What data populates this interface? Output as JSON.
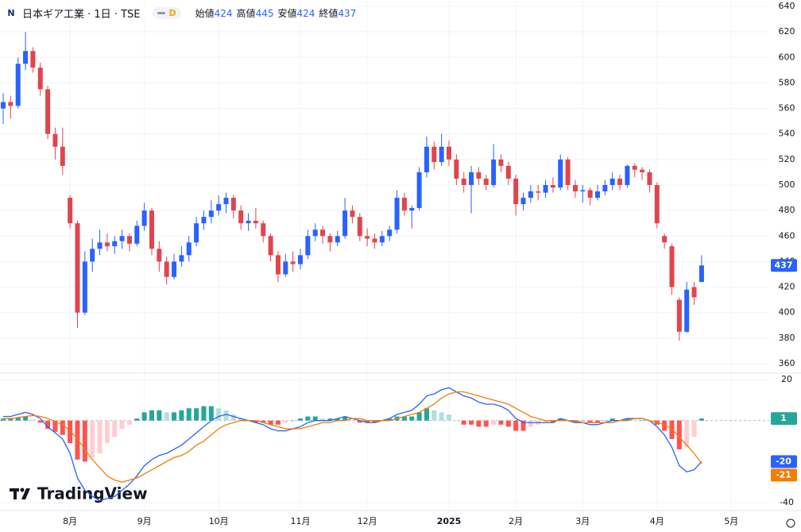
{
  "header": {
    "logo": "N",
    "symbol": "日本ギア工業 · 1日 · TSE",
    "badge": "D"
  },
  "watermark": "TradingView",
  "chart_data": {
    "type": "candlestick",
    "ohlc_labels": [
      "始値",
      "高値",
      "安値",
      "終値"
    ],
    "up_color": "#2962ff",
    "down_color": "#e0454e",
    "categories": [
      null,
      null,
      null,
      null,
      null,
      null,
      null,
      null,
      null,
      "8月",
      null,
      null,
      null,
      null,
      null,
      null,
      null,
      null,
      null,
      "9月",
      null,
      null,
      null,
      null,
      null,
      null,
      null,
      null,
      null,
      "10月",
      null,
      null,
      null,
      null,
      null,
      null,
      null,
      null,
      null,
      null,
      "11月",
      null,
      null,
      null,
      null,
      null,
      null,
      null,
      null,
      "12月",
      null,
      null,
      null,
      null,
      null,
      null,
      null,
      null,
      null,
      null,
      "2025",
      null,
      null,
      null,
      null,
      null,
      null,
      null,
      null,
      "2月",
      null,
      null,
      null,
      null,
      null,
      null,
      null,
      null,
      "3月",
      null,
      null,
      null,
      null,
      null,
      null,
      null,
      null,
      null,
      "4月",
      null,
      null,
      null,
      null,
      null,
      null,
      null,
      null,
      null,
      "5月",
      null
    ],
    "candles": [
      [
        560,
        572,
        548,
        565
      ],
      [
        565,
        570,
        552,
        562
      ],
      [
        562,
        600,
        560,
        595
      ],
      [
        595,
        620,
        590,
        605
      ],
      [
        605,
        608,
        588,
        592
      ],
      [
        592,
        596,
        570,
        575
      ],
      [
        575,
        578,
        536,
        540
      ],
      [
        540,
        545,
        520,
        530
      ],
      [
        530,
        545,
        508,
        515
      ],
      [
        490,
        492,
        466,
        470
      ],
      [
        470,
        472,
        388,
        400
      ],
      [
        400,
        448,
        398,
        440
      ],
      [
        440,
        458,
        432,
        450
      ],
      [
        450,
        465,
        445,
        455
      ],
      [
        455,
        462,
        448,
        452
      ],
      [
        452,
        460,
        446,
        456
      ],
      [
        456,
        465,
        450,
        460
      ],
      [
        460,
        462,
        448,
        454
      ],
      [
        454,
        472,
        452,
        468
      ],
      [
        468,
        486,
        464,
        480
      ],
      [
        480,
        482,
        445,
        450
      ],
      [
        450,
        456,
        432,
        440
      ],
      [
        440,
        444,
        422,
        428
      ],
      [
        428,
        446,
        426,
        440
      ],
      [
        440,
        452,
        436,
        445
      ],
      [
        445,
        460,
        440,
        455
      ],
      [
        455,
        475,
        452,
        470
      ],
      [
        470,
        480,
        465,
        475
      ],
      [
        475,
        488,
        470,
        480
      ],
      [
        480,
        492,
        476,
        485
      ],
      [
        485,
        494,
        478,
        490
      ],
      [
        490,
        492,
        474,
        480
      ],
      [
        480,
        484,
        465,
        470
      ],
      [
        470,
        478,
        464,
        472
      ],
      [
        472,
        482,
        466,
        470
      ],
      [
        470,
        472,
        455,
        460
      ],
      [
        460,
        462,
        440,
        445
      ],
      [
        445,
        448,
        424,
        430
      ],
      [
        430,
        446,
        428,
        440
      ],
      [
        440,
        448,
        432,
        438
      ],
      [
        438,
        450,
        434,
        445
      ],
      [
        445,
        465,
        442,
        460
      ],
      [
        460,
        470,
        456,
        465
      ],
      [
        465,
        468,
        454,
        460
      ],
      [
        460,
        462,
        448,
        455
      ],
      [
        455,
        464,
        452,
        460
      ],
      [
        460,
        490,
        458,
        480
      ],
      [
        480,
        484,
        470,
        475
      ],
      [
        475,
        478,
        456,
        460
      ],
      [
        460,
        466,
        452,
        458
      ],
      [
        458,
        462,
        450,
        455
      ],
      [
        455,
        464,
        452,
        460
      ],
      [
        460,
        468,
        456,
        465
      ],
      [
        465,
        496,
        462,
        490
      ],
      [
        490,
        494,
        476,
        480
      ],
      [
        480,
        484,
        466,
        482
      ],
      [
        482,
        514,
        480,
        510
      ],
      [
        510,
        538,
        506,
        530
      ],
      [
        530,
        534,
        512,
        518
      ],
      [
        518,
        540,
        515,
        530
      ],
      [
        530,
        535,
        515,
        520
      ],
      [
        520,
        524,
        500,
        505
      ],
      [
        505,
        510,
        494,
        500
      ],
      [
        500,
        515,
        478,
        510
      ],
      [
        510,
        514,
        500,
        505
      ],
      [
        505,
        508,
        496,
        500
      ],
      [
        500,
        532,
        498,
        520
      ],
      [
        520,
        524,
        510,
        515
      ],
      [
        515,
        518,
        500,
        505
      ],
      [
        505,
        508,
        476,
        485
      ],
      [
        485,
        494,
        480,
        490
      ],
      [
        490,
        500,
        486,
        495
      ],
      [
        495,
        500,
        488,
        494
      ],
      [
        494,
        504,
        490,
        500
      ],
      [
        500,
        506,
        494,
        498
      ],
      [
        498,
        524,
        496,
        520
      ],
      [
        520,
        522,
        496,
        500
      ],
      [
        500,
        504,
        490,
        495
      ],
      [
        495,
        500,
        486,
        496
      ],
      [
        496,
        498,
        484,
        490
      ],
      [
        490,
        500,
        488,
        495
      ],
      [
        495,
        504,
        492,
        500
      ],
      [
        500,
        510,
        496,
        505
      ],
      [
        505,
        508,
        496,
        500
      ],
      [
        500,
        516,
        498,
        515
      ],
      [
        515,
        517,
        506,
        512
      ],
      [
        512,
        514,
        504,
        510
      ],
      [
        510,
        512,
        494,
        500
      ],
      [
        500,
        502,
        466,
        470
      ],
      [
        460,
        462,
        450,
        455
      ],
      [
        452,
        454,
        414,
        420
      ],
      [
        410,
        412,
        378,
        385
      ],
      [
        385,
        424,
        384,
        418
      ],
      [
        420,
        424,
        406,
        412
      ],
      [
        424,
        445,
        424,
        437
      ],
      null,
      null,
      null,
      null,
      null
    ],
    "ylim": [
      360,
      640
    ],
    "yticks": [
      360,
      380,
      400,
      420,
      440,
      460,
      480,
      500,
      520,
      540,
      560,
      580,
      600,
      620,
      640
    ],
    "grid": true,
    "macd": {
      "type": "macd",
      "ylim": [
        -40,
        20
      ],
      "yticks": [
        -40,
        20
      ],
      "macd": {
        "color": "#2962ff",
        "values": [
          2,
          2,
          3,
          4,
          3,
          1,
          -3,
          -6,
          -9,
          -16,
          -28,
          -34,
          -37,
          -39,
          -38,
          -37,
          -34,
          -31,
          -27,
          -22,
          -19,
          -17,
          -16,
          -14,
          -12,
          -9,
          -6,
          -3,
          0,
          2,
          3,
          2,
          1,
          0,
          -1,
          -2,
          -4,
          -5,
          -5,
          -4,
          -3,
          -1,
          0,
          0,
          0,
          1,
          2,
          1,
          0,
          -1,
          -1,
          0,
          1,
          3,
          4,
          5,
          8,
          12,
          13,
          15,
          16,
          14,
          12,
          11,
          9,
          8,
          8,
          7,
          5,
          1,
          -1,
          -1,
          -1,
          -1,
          -1,
          1,
          0,
          -1,
          -1,
          -2,
          -2,
          -1,
          0,
          0,
          1,
          1,
          1,
          0,
          -3,
          -7,
          -13,
          -22,
          -25,
          -24,
          -20,
          null,
          null,
          null,
          null,
          null
        ]
      },
      "signal": {
        "color": "#f57c00",
        "values": [
          1,
          1,
          1.5,
          2,
          2.5,
          2,
          1,
          -0.5,
          -2,
          -5,
          -9,
          -14,
          -19,
          -23,
          -27,
          -29,
          -30,
          -29,
          -28,
          -26,
          -24,
          -22,
          -20,
          -18,
          -17,
          -15,
          -12,
          -10,
          -7,
          -4,
          -2,
          -1,
          0,
          0,
          0,
          -1,
          -2,
          -3,
          -4,
          -4,
          -4,
          -3,
          -2,
          -1,
          -1,
          0,
          0,
          1,
          1,
          0,
          0,
          0,
          0,
          1,
          2,
          3,
          4,
          6,
          8,
          11,
          13,
          14,
          14,
          13,
          12,
          11,
          10,
          9,
          8,
          6,
          4,
          2,
          1,
          0,
          0,
          0,
          0,
          0,
          -1,
          -1,
          -1,
          -1,
          -1,
          0,
          0,
          1,
          1,
          0,
          -1,
          -2,
          -4,
          -8,
          -12,
          -16,
          -21,
          null,
          null,
          null,
          null,
          null
        ]
      },
      "histogram": {
        "colors": [
          "#26a69a",
          "#b2dfdb",
          "#ff5252",
          "#ffcdd2"
        ],
        "values": [
          1,
          1,
          1.5,
          2,
          0.5,
          -1,
          -4,
          -5.5,
          -7,
          -11,
          -19,
          -20,
          -18,
          -16,
          -11,
          -8,
          -4,
          -2,
          1,
          4,
          5,
          5,
          4,
          4,
          5,
          6,
          6,
          7,
          7,
          6,
          5,
          3,
          1,
          0,
          -1,
          -1,
          -2,
          -2,
          -1,
          0,
          1,
          2,
          2,
          1,
          1,
          1,
          2,
          0,
          -1,
          -1,
          -1,
          0,
          1,
          2,
          2,
          2,
          4,
          6,
          5,
          4,
          3,
          0,
          -2,
          -2,
          -3,
          -3,
          -2,
          -2,
          -3,
          -5,
          -5,
          -3,
          -2,
          -1,
          -1,
          1,
          0,
          -1,
          0,
          -1,
          -1,
          0,
          1,
          0,
          1,
          0,
          0,
          0,
          -2,
          -5,
          -9,
          -14,
          -13,
          -8,
          1,
          null,
          null,
          null,
          null,
          null
        ]
      }
    }
  }
}
